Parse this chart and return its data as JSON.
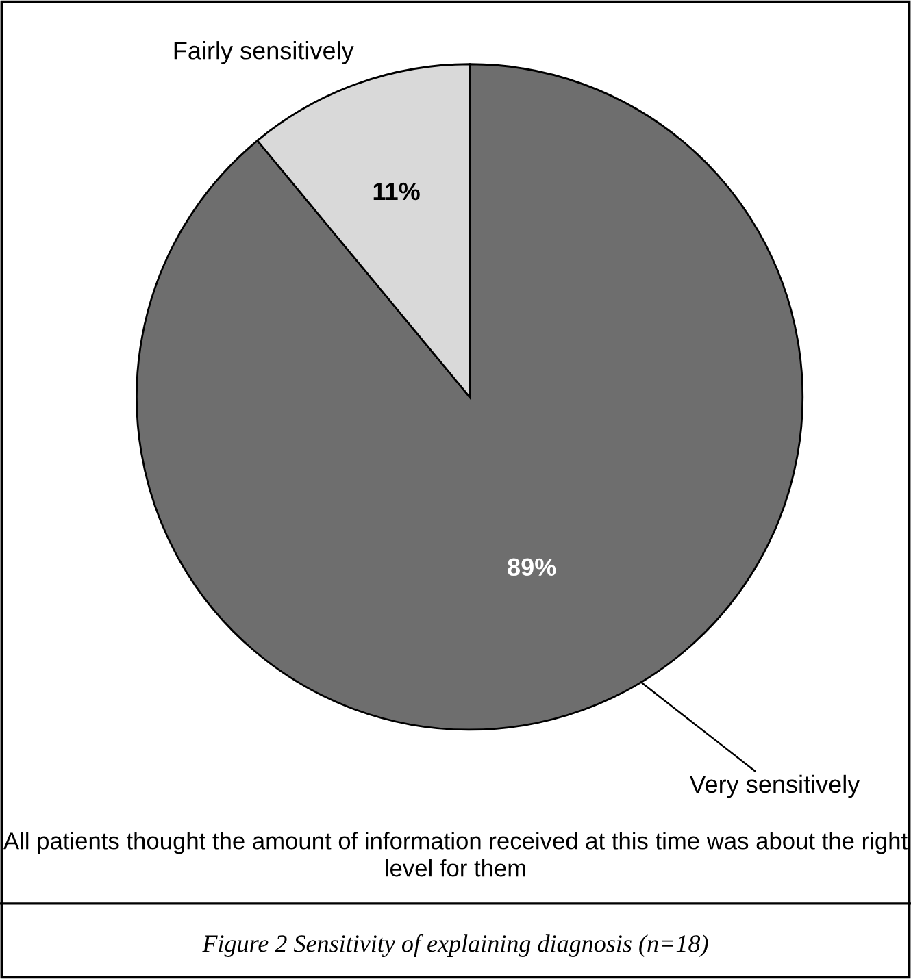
{
  "chart_data": {
    "type": "pie",
    "categories": [
      "Very sensitively",
      "Fairly sensitively"
    ],
    "values": [
      89,
      11
    ],
    "colors": [
      "#6e6e6e",
      "#d9d9d9"
    ],
    "value_labels": [
      "89%",
      "11%"
    ],
    "annotations": [
      "All patients thought the amount of information received at this time was about the right level for them",
      "Figure 2 Sensitivity of explaining diagnosis (n=18)"
    ]
  }
}
